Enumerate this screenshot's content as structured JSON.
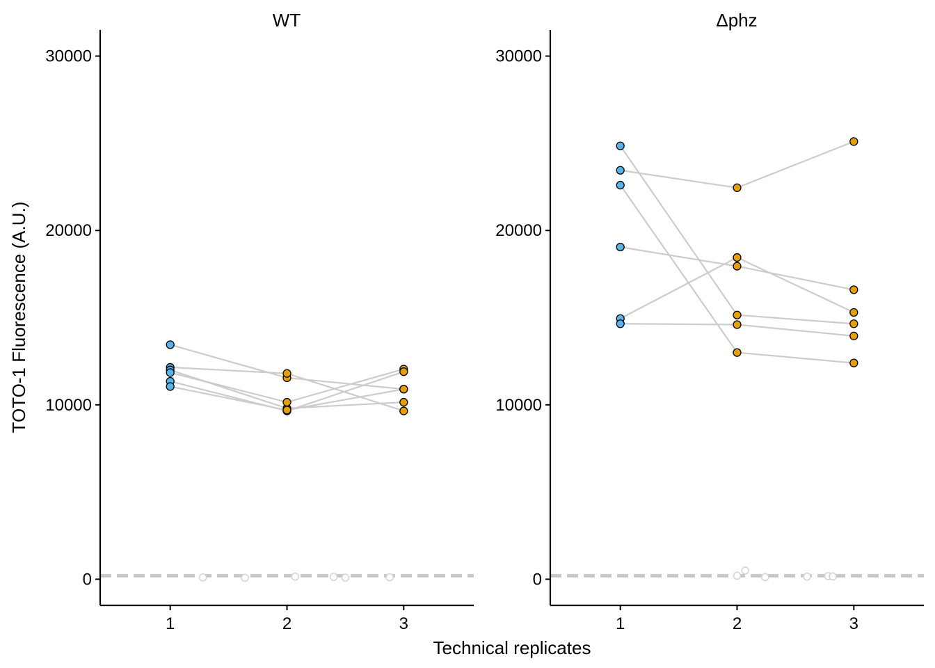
{
  "chart_data": {
    "type": "scatter",
    "ylabel": "TOTO-1 Fluorescence (A.U.)",
    "xlabel": "Technical replicates",
    "x_ticks": [
      "1",
      "2",
      "3"
    ],
    "y_ticks": [
      "0",
      "10000",
      "20000",
      "30000"
    ],
    "xlim": [
      0.4,
      3.6
    ],
    "ylim": [
      -1500,
      31500
    ],
    "grid": false,
    "baseline_y": 200,
    "colors": {
      "replicate_1": "#56B4E9",
      "replicate_2_3": "#E69F00",
      "connect_line": "#CCCCCC",
      "blank_point": "#D3D3D3",
      "baseline": "#C8C8C8"
    },
    "panels": [
      {
        "title": "WT",
        "series": [
          {
            "x": [
              1,
              2,
              3
            ],
            "y": [
              13450,
              11550,
              10900
            ]
          },
          {
            "x": [
              1,
              2,
              3
            ],
            "y": [
              12150,
              11800,
              9650
            ]
          },
          {
            "x": [
              1,
              2,
              3
            ],
            "y": [
              12000,
              9800,
              10150
            ]
          },
          {
            "x": [
              1,
              2,
              3
            ],
            "y": [
              11850,
              10150,
              12050
            ]
          },
          {
            "x": [
              1,
              2,
              3
            ],
            "y": [
              11350,
              9650,
              11900
            ]
          },
          {
            "x": [
              1,
              2,
              3
            ],
            "y": [
              11050,
              9700,
              10900
            ]
          }
        ],
        "blanks": [
          {
            "x": 1.28,
            "y": 100
          },
          {
            "x": 1.64,
            "y": 80
          },
          {
            "x": 2.07,
            "y": 150
          },
          {
            "x": 2.4,
            "y": 130
          },
          {
            "x": 2.5,
            "y": 90
          },
          {
            "x": 2.88,
            "y": 110
          }
        ]
      },
      {
        "title": "Δphz",
        "series": [
          {
            "x": [
              1,
              2,
              3
            ],
            "y": [
              24850,
              15150,
              14650
            ]
          },
          {
            "x": [
              1,
              2,
              3
            ],
            "y": [
              23450,
              22450,
              25100
            ]
          },
          {
            "x": [
              1,
              2,
              3
            ],
            "y": [
              22600,
              13000,
              12400
            ]
          },
          {
            "x": [
              1,
              2,
              3
            ],
            "y": [
              19050,
              17950,
              16600
            ]
          },
          {
            "x": [
              1,
              2,
              3
            ],
            "y": [
              14950,
              18450,
              15300
            ]
          },
          {
            "x": [
              1,
              2,
              3
            ],
            "y": [
              14650,
              14600,
              13950
            ]
          }
        ],
        "blanks": [
          {
            "x": 2.0,
            "y": 200
          },
          {
            "x": 2.07,
            "y": 500
          },
          {
            "x": 2.24,
            "y": 120
          },
          {
            "x": 2.6,
            "y": 150
          },
          {
            "x": 2.78,
            "y": 180
          },
          {
            "x": 2.82,
            "y": 160
          }
        ]
      }
    ]
  }
}
